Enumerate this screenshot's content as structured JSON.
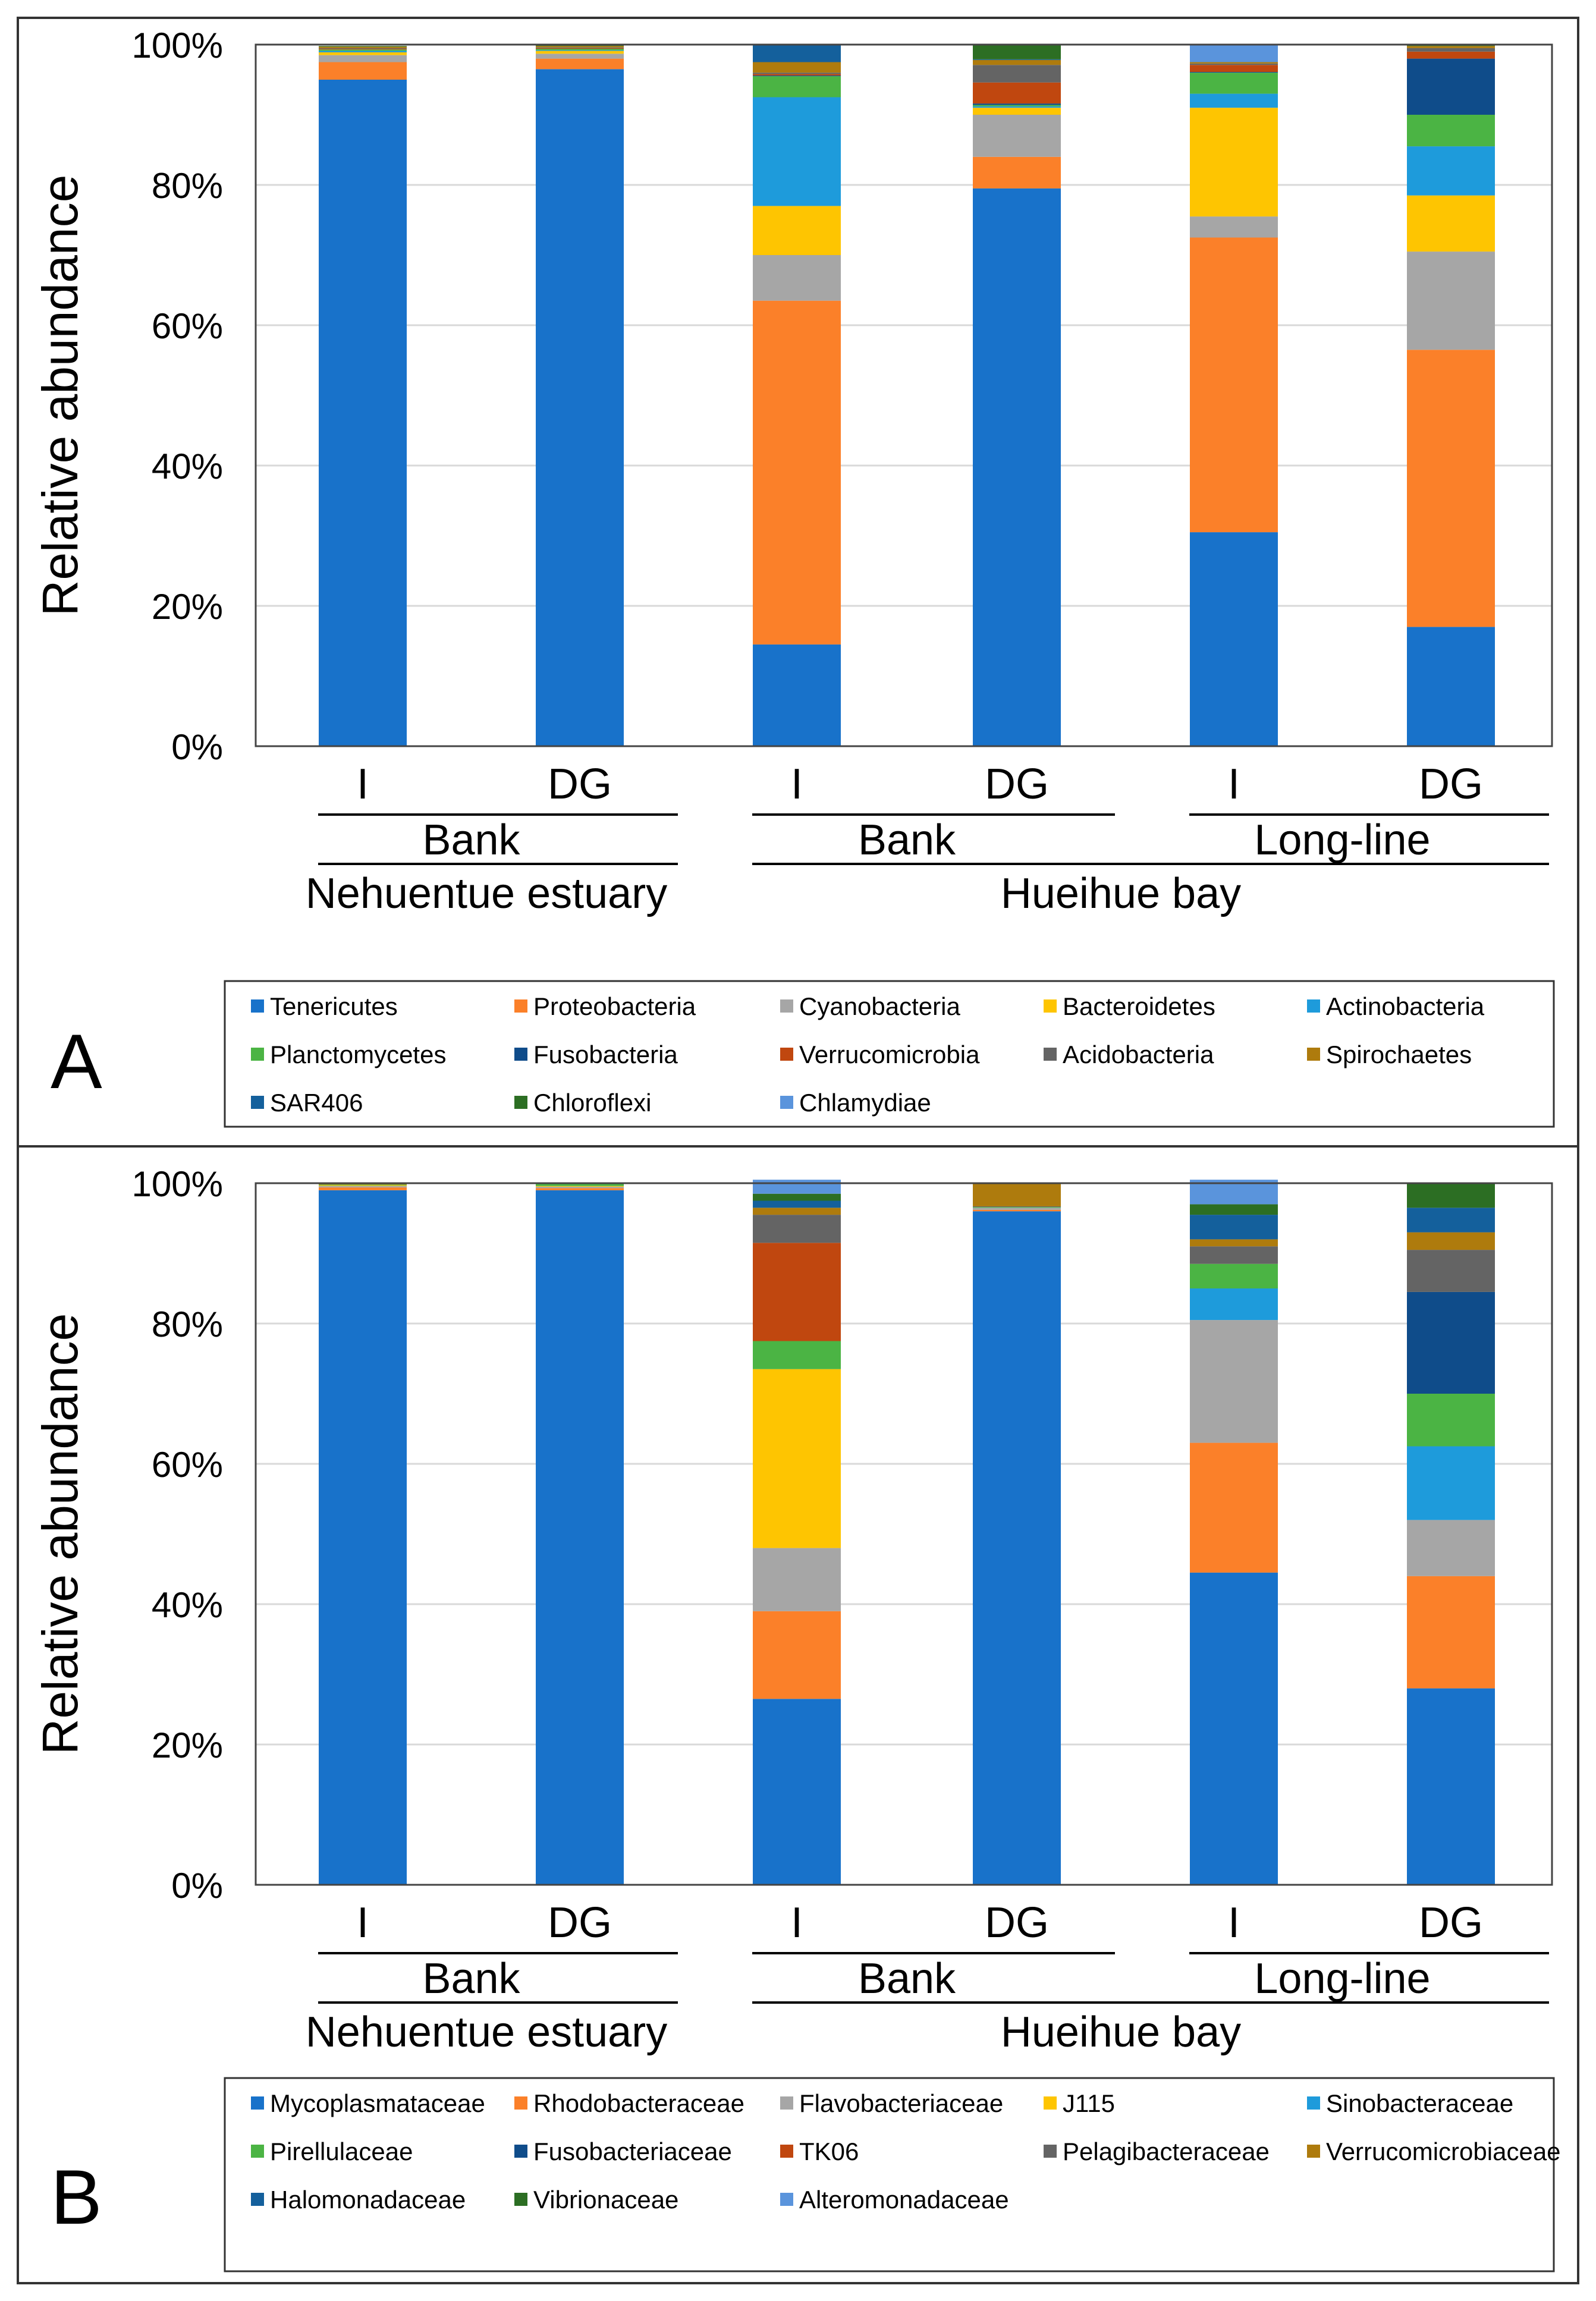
{
  "chart_data": [
    {
      "type": "bar",
      "stacked": true,
      "panel_label": "A",
      "ylabel": "Relative abundance",
      "ylim": [
        0,
        100
      ],
      "yticks": [
        "0%",
        "20%",
        "40%",
        "60%",
        "80%",
        "100%"
      ],
      "grid": true,
      "categories": [
        "I",
        "DG",
        "I",
        "DG",
        "I",
        "DG"
      ],
      "group_labels": {
        "level1": [
          "Bank",
          "Bank",
          "Long-line"
        ],
        "level2": [
          "Nehuentue estuary",
          "Hueihue  bay"
        ]
      },
      "series": [
        {
          "name": "Tenericutes",
          "color": "#1872CA",
          "values": [
            95.0,
            96.5,
            14.5,
            79.5,
            30.5,
            17.0
          ]
        },
        {
          "name": "Proteobacteria",
          "color": "#FB8029",
          "values": [
            2.5,
            1.5,
            49.0,
            4.5,
            42.0,
            39.5
          ]
        },
        {
          "name": "Cyanobacteria",
          "color": "#A6A6A6",
          "values": [
            1.0,
            0.7,
            6.5,
            6.0,
            3.0,
            14.0
          ]
        },
        {
          "name": "Bacteroidetes",
          "color": "#FEC501",
          "values": [
            0.4,
            0.4,
            7.0,
            1.0,
            15.5,
            8.0
          ]
        },
        {
          "name": "Actinobacteria",
          "color": "#1E9BDB",
          "values": [
            0.2,
            0.1,
            15.5,
            0.2,
            2.0,
            7.0
          ]
        },
        {
          "name": "Planctomycetes",
          "color": "#4BB444",
          "values": [
            0.2,
            0.2,
            3.0,
            0.2,
            3.0,
            4.5
          ]
        },
        {
          "name": "Fusobacteria",
          "color": "#0F4C8A",
          "values": [
            0.0,
            0.0,
            0.1,
            0.2,
            0.1,
            8.0
          ]
        },
        {
          "name": "Verrucomicrobia",
          "color": "#C0470F",
          "values": [
            0.1,
            0.1,
            0.2,
            3.0,
            1.0,
            1.0
          ]
        },
        {
          "name": "Acidobacteria",
          "color": "#646464",
          "values": [
            0.1,
            0.1,
            0.2,
            2.5,
            0.2,
            0.5
          ]
        },
        {
          "name": "Spirochaetes",
          "color": "#AE7B0D",
          "values": [
            0.2,
            0.2,
            1.5,
            0.7,
            0.2,
            0.3
          ]
        },
        {
          "name": "SAR406",
          "color": "#14609C",
          "values": [
            0.0,
            0.0,
            2.5,
            0.1,
            0.0,
            0.0
          ]
        },
        {
          "name": "Chloroflexi",
          "color": "#2C6E23",
          "values": [
            0.1,
            0.2,
            0.0,
            2.0,
            0.0,
            0.2
          ]
        },
        {
          "name": "Chlamydiae",
          "color": "#5A94DC",
          "values": [
            0.0,
            0.0,
            0.0,
            0.0,
            2.5,
            0.0
          ]
        }
      ]
    },
    {
      "type": "bar",
      "stacked": true,
      "panel_label": "B",
      "ylabel": "Relative abundance",
      "ylim": [
        0,
        100
      ],
      "yticks": [
        "0%",
        "20%",
        "40%",
        "60%",
        "80%",
        "100%"
      ],
      "grid": true,
      "categories": [
        "I",
        "DG",
        "I",
        "DG",
        "I",
        "DG"
      ],
      "group_labels": {
        "level1": [
          "Bank",
          "Bank",
          "Long-line"
        ],
        "level2": [
          "Nehuentue estuary",
          "Hueihue  bay"
        ]
      },
      "series": [
        {
          "name": "Mycoplasmataceae",
          "color": "#1872CA",
          "values": [
            99.0,
            99.0,
            26.5,
            96.0,
            44.5,
            28.0
          ]
        },
        {
          "name": "Rhodobacteraceae",
          "color": "#FB8029",
          "values": [
            0.4,
            0.3,
            12.5,
            0.2,
            18.5,
            16.0
          ]
        },
        {
          "name": "Flavobacteriaceae",
          "color": "#A6A6A6",
          "values": [
            0.2,
            0.2,
            9.0,
            0.3,
            17.5,
            8.0
          ]
        },
        {
          "name": "J115",
          "color": "#FEC501",
          "values": [
            0.1,
            0.1,
            25.5,
            0.0,
            0.0,
            0.0
          ]
        },
        {
          "name": "Sinobacteraceae",
          "color": "#1E9BDB",
          "values": [
            0.0,
            0.0,
            0.0,
            0.0,
            4.5,
            10.5
          ]
        },
        {
          "name": "Pirellulaceae",
          "color": "#4BB444",
          "values": [
            0.1,
            0.3,
            4.0,
            0.1,
            3.5,
            7.5
          ]
        },
        {
          "name": "Fusobacteriaceae",
          "color": "#0F4C8A",
          "values": [
            0.0,
            0.0,
            0.0,
            0.0,
            0.0,
            14.5
          ]
        },
        {
          "name": "TK06",
          "color": "#C0470F",
          "values": [
            0.0,
            0.0,
            14.0,
            0.0,
            0.0,
            0.0
          ]
        },
        {
          "name": "Pelagibacteraceae",
          "color": "#646464",
          "values": [
            0.0,
            0.0,
            4.0,
            0.1,
            2.5,
            6.0
          ]
        },
        {
          "name": "Verrucomicrobiaceae",
          "color": "#AE7B0D",
          "values": [
            0.1,
            0.0,
            1.0,
            3.2,
            1.0,
            2.5
          ]
        },
        {
          "name": "Halomonadaceae",
          "color": "#14609C",
          "values": [
            0.0,
            0.0,
            1.0,
            0.0,
            3.5,
            3.5
          ]
        },
        {
          "name": "Vibrionaceae",
          "color": "#2C6E23",
          "values": [
            0.0,
            0.0,
            1.0,
            0.0,
            1.5,
            3.5
          ]
        },
        {
          "name": "Alteromonadaceae",
          "color": "#5A94DC",
          "values": [
            0.0,
            0.0,
            2.0,
            0.0,
            3.5,
            0.0
          ]
        }
      ]
    }
  ]
}
